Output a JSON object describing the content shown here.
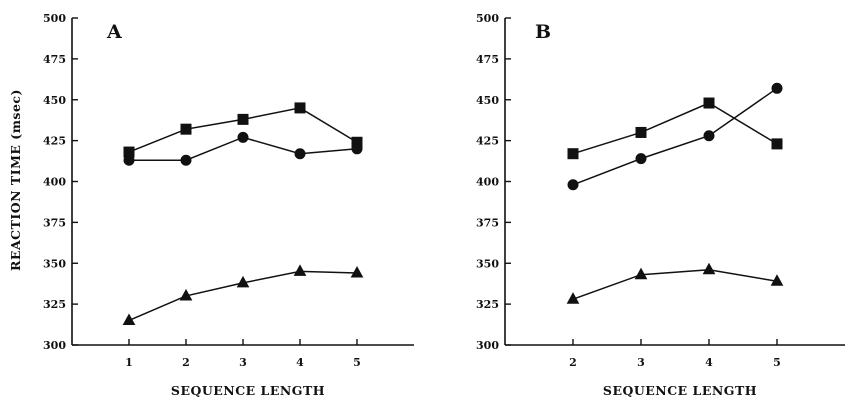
{
  "ylabel": "REACTION TIME (msec)",
  "chart_data": [
    {
      "type": "line",
      "panel_label": "A",
      "xlabel": "SEQUENCE LENGTH",
      "x": [
        1,
        2,
        3,
        4,
        5
      ],
      "xticks": [
        "1",
        "2",
        "3",
        "4",
        "5"
      ],
      "xlim": [
        0,
        6
      ],
      "ylim": [
        300,
        500
      ],
      "yticks": [
        "300",
        "325",
        "350",
        "375",
        "400",
        "425",
        "450",
        "475",
        "500"
      ],
      "series": [
        {
          "marker": "square",
          "values": [
            418,
            432,
            438,
            445,
            424
          ]
        },
        {
          "marker": "circle",
          "values": [
            413,
            413,
            427,
            417,
            420
          ]
        },
        {
          "marker": "triangle",
          "values": [
            315,
            330,
            338,
            345,
            344
          ]
        }
      ]
    },
    {
      "type": "line",
      "panel_label": "B",
      "xlabel": "SEQUENCE LENGTH",
      "x": [
        2,
        3,
        4,
        5
      ],
      "xticks": [
        "2",
        "3",
        "4",
        "5"
      ],
      "xlim": [
        1,
        6
      ],
      "ylim": [
        300,
        500
      ],
      "yticks": [
        "300",
        "325",
        "350",
        "375",
        "400",
        "425",
        "450",
        "475",
        "500"
      ],
      "series": [
        {
          "marker": "square",
          "values": [
            417,
            430,
            448,
            423
          ]
        },
        {
          "marker": "circle",
          "values": [
            398,
            414,
            428,
            457
          ]
        },
        {
          "marker": "triangle",
          "values": [
            328,
            343,
            346,
            339
          ]
        }
      ]
    }
  ]
}
